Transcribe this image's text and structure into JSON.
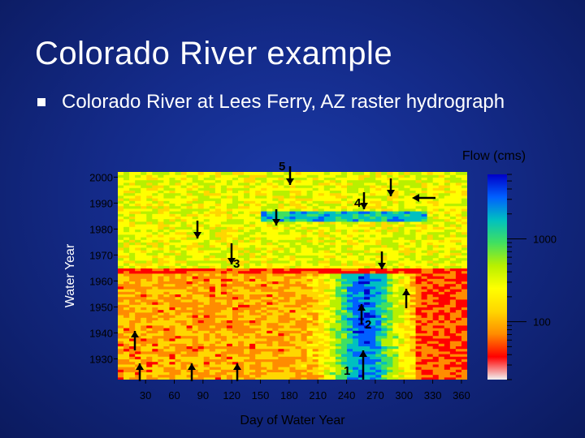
{
  "slide": {
    "title": "Colorado River example",
    "bullet": "Colorado River at Lees Ferry, AZ raster hydrograph"
  },
  "chart_data": {
    "type": "heatmap",
    "xlabel": "Day of Water Year",
    "ylabel": "Water Year",
    "x_ticks": [
      30,
      60,
      90,
      120,
      150,
      180,
      210,
      240,
      270,
      300,
      330,
      360
    ],
    "y_ticks": [
      1930,
      1940,
      1950,
      1960,
      1970,
      1980,
      1990,
      2000
    ],
    "xlim": [
      1,
      366
    ],
    "ylim": [
      1922,
      2002
    ],
    "colorbar": {
      "label": "Flow (cms)",
      "scale": "log",
      "ticks": [
        100,
        1000
      ],
      "colors": [
        "#f2f2f2",
        "#ff0000",
        "#ff8c00",
        "#ffd700",
        "#ffff00",
        "#b8f000",
        "#40e060",
        "#00c0c0",
        "#0060ff",
        "#0000c8"
      ]
    },
    "annotations": [
      {
        "label": "1",
        "description": "arrow pointing up at day ~245, early years"
      },
      {
        "label": "2",
        "description": "arrow pointing up near day ~245, 1940s"
      },
      {
        "label": "3",
        "description": "arrow pointing down at day ~120, 1970s"
      },
      {
        "label": "4",
        "description": "arrow pointing down near day ~250, 1980s"
      },
      {
        "label": "5",
        "description": "arrow pointing down at day ~180, top"
      }
    ]
  }
}
